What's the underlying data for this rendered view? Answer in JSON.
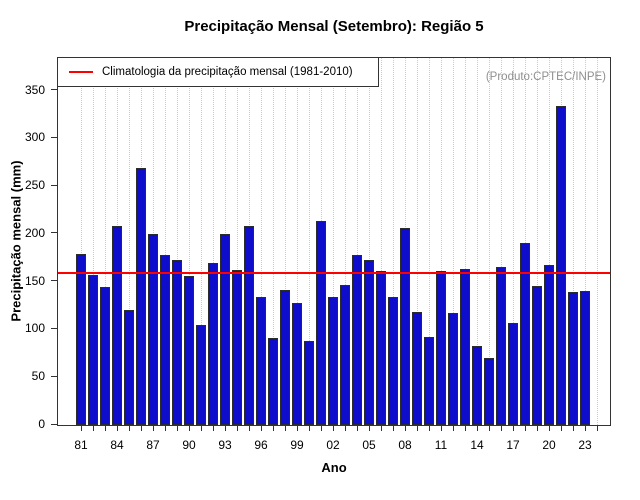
{
  "legend": {
    "label": "Climatologia da precipitação mensal (1981-2010)"
  },
  "watermark": "(Produto:CPTEC/INPE)",
  "colors": {
    "bar_fill": "#0d0dcb",
    "bar_border": "#2b2b2b",
    "climatology_line": "#ff0000",
    "grid": "#cccccc",
    "watermark_text": "#8f8f8f"
  },
  "chart_data": {
    "type": "bar",
    "title": "Precipitação Mensal (Setembro): Região 5",
    "xlabel": "Ano",
    "ylabel": "Precipitação mensal (mm)",
    "years": [
      "1981",
      "1982",
      "1983",
      "1984",
      "1985",
      "1986",
      "1987",
      "1988",
      "1989",
      "1990",
      "1991",
      "1992",
      "1993",
      "1994",
      "1995",
      "1996",
      "1997",
      "1998",
      "1999",
      "2000",
      "2001",
      "2002",
      "2003",
      "2004",
      "2005",
      "2006",
      "2007",
      "2008",
      "2009",
      "2010",
      "2011",
      "2012",
      "2013",
      "2014",
      "2015",
      "2016",
      "2017",
      "2018",
      "2019",
      "2020",
      "2021",
      "2022",
      "2023"
    ],
    "values": [
      179,
      157,
      144,
      208,
      120,
      269,
      200,
      178,
      173,
      156,
      105,
      170,
      200,
      162,
      208,
      134,
      91,
      141,
      128,
      88,
      213,
      134,
      147,
      178,
      173,
      161,
      134,
      206,
      118,
      92,
      161,
      117,
      163,
      83,
      70,
      165,
      107,
      190,
      145,
      167,
      334,
      139,
      140
    ],
    "climatology_value": 159,
    "ylim": [
      0,
      384
    ],
    "yticks": [
      0,
      50,
      100,
      150,
      200,
      250,
      300,
      350
    ],
    "x_tick_labels": [
      "81",
      "84",
      "87",
      "90",
      "93",
      "96",
      "99",
      "02",
      "05",
      "08",
      "11",
      "14",
      "17",
      "20",
      "23"
    ],
    "x_tick_label_step": 3,
    "extra_empty_year_tick": "2024",
    "grid": "vertical dotted line per year",
    "legend_position": "top-left"
  }
}
